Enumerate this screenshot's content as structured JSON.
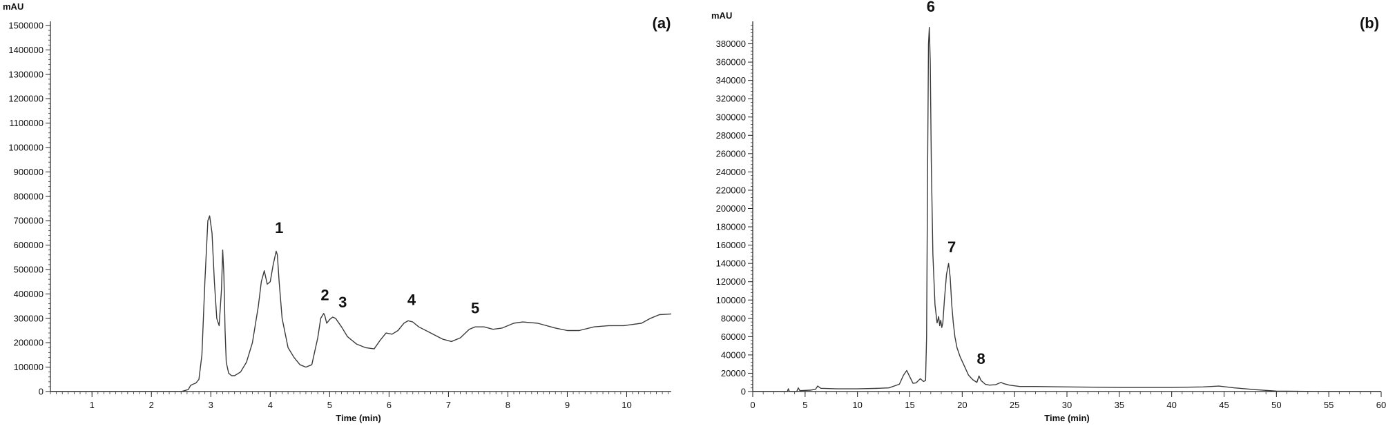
{
  "chart_data": [
    {
      "type": "line",
      "panel_label": "(a)",
      "ylabel": "mAU",
      "xlabel": "Time (min)",
      "xlim": [
        0.3,
        10.75
      ],
      "ylim": [
        0,
        1500000
      ],
      "xticks": [
        1,
        2,
        3,
        4,
        5,
        6,
        7,
        8,
        9,
        10
      ],
      "x_minor_step": 0.1,
      "yticks": [
        0,
        100000,
        200000,
        300000,
        400000,
        500000,
        600000,
        700000,
        800000,
        900000,
        1000000,
        1100000,
        1200000,
        1300000,
        1400000,
        1500000
      ],
      "y_minor_step": 20000,
      "grid": false,
      "series": [
        {
          "x": [
            0.3,
            1.0,
            2.0,
            2.5,
            2.62,
            2.66,
            2.7,
            2.75,
            2.8,
            2.85,
            2.9,
            2.95,
            2.98,
            3.02,
            3.06,
            3.1,
            3.14,
            3.18,
            3.2,
            3.22,
            3.24,
            3.26,
            3.3,
            3.35,
            3.4,
            3.5,
            3.6,
            3.7,
            3.8,
            3.85,
            3.9,
            3.95,
            4.0,
            4.05,
            4.1,
            4.12,
            4.15,
            4.2,
            4.3,
            4.4,
            4.5,
            4.6,
            4.7,
            4.8,
            4.85,
            4.9,
            4.92,
            4.95,
            5.0,
            5.05,
            5.1,
            5.2,
            5.3,
            5.45,
            5.6,
            5.75,
            5.85,
            5.95,
            6.05,
            6.15,
            6.25,
            6.32,
            6.4,
            6.5,
            6.7,
            6.9,
            7.05,
            7.2,
            7.35,
            7.45,
            7.6,
            7.75,
            7.9,
            8.1,
            8.25,
            8.5,
            8.8,
            9.0,
            9.2,
            9.45,
            9.7,
            9.95,
            10.1,
            10.25,
            10.4,
            10.55,
            10.75
          ],
          "values": [
            0,
            0,
            0,
            0,
            8000,
            25000,
            30000,
            35000,
            50000,
            150000,
            450000,
            700000,
            720000,
            650000,
            450000,
            300000,
            270000,
            420000,
            580000,
            480000,
            250000,
            120000,
            75000,
            65000,
            65000,
            80000,
            120000,
            200000,
            350000,
            450000,
            495000,
            440000,
            450000,
            520000,
            575000,
            560000,
            450000,
            300000,
            180000,
            140000,
            110000,
            100000,
            110000,
            220000,
            300000,
            320000,
            310000,
            280000,
            295000,
            305000,
            300000,
            265000,
            225000,
            195000,
            180000,
            175000,
            210000,
            240000,
            235000,
            250000,
            280000,
            290000,
            285000,
            265000,
            240000,
            215000,
            205000,
            220000,
            255000,
            265000,
            265000,
            255000,
            260000,
            280000,
            285000,
            280000,
            260000,
            250000,
            250000,
            265000,
            270000,
            270000,
            275000,
            280000,
            300000,
            315000,
            318000
          ]
        }
      ],
      "annotations": [
        {
          "text": "1",
          "x": 4.15,
          "y": 650000
        },
        {
          "text": "2",
          "x": 4.92,
          "y": 375000
        },
        {
          "text": "3",
          "x": 5.22,
          "y": 345000
        },
        {
          "text": "4",
          "x": 6.38,
          "y": 355000
        },
        {
          "text": "5",
          "x": 7.45,
          "y": 320000
        }
      ]
    },
    {
      "type": "line",
      "panel_label": "(b)",
      "ylabel": "mAU",
      "xlabel": "Time (min)",
      "xlim": [
        0,
        60
      ],
      "ylim": [
        0,
        400000
      ],
      "xticks": [
        0,
        5,
        10,
        15,
        20,
        25,
        30,
        35,
        40,
        45,
        50,
        55,
        60
      ],
      "x_minor_step": 1,
      "yticks": [
        0,
        20000,
        40000,
        60000,
        80000,
        100000,
        120000,
        140000,
        160000,
        180000,
        200000,
        220000,
        240000,
        260000,
        280000,
        300000,
        320000,
        340000,
        360000,
        380000
      ],
      "y_minor_step": 4000,
      "grid": false,
      "series": [
        {
          "x": [
            0,
            3.3,
            3.4,
            3.5,
            4.2,
            4.35,
            4.5,
            5.5,
            6.0,
            6.2,
            6.5,
            8,
            10,
            12,
            13,
            14,
            14.4,
            14.7,
            15.0,
            15.3,
            15.6,
            16.0,
            16.3,
            16.5,
            16.6,
            16.7,
            16.78,
            16.86,
            16.95,
            17.05,
            17.2,
            17.4,
            17.6,
            17.75,
            17.85,
            17.95,
            18.05,
            18.15,
            18.3,
            18.5,
            18.7,
            18.85,
            19.0,
            19.15,
            19.3,
            19.5,
            19.8,
            20.2,
            20.6,
            21.0,
            21.4,
            21.6,
            21.8,
            22.2,
            22.6,
            23.2,
            23.7,
            24.0,
            24.5,
            25.5,
            27,
            30,
            35,
            40,
            43,
            44.5,
            46,
            48,
            50,
            55,
            60
          ],
          "values": [
            0,
            0,
            3000,
            0,
            0,
            4000,
            1000,
            1500,
            2500,
            6000,
            3500,
            3000,
            3000,
            3500,
            4000,
            8000,
            18000,
            23000,
            16000,
            9000,
            9500,
            14000,
            11000,
            12000,
            60000,
            250000,
            380000,
            398000,
            360000,
            250000,
            150000,
            95000,
            75000,
            82000,
            72000,
            78000,
            70000,
            75000,
            100000,
            128000,
            140000,
            125000,
            95000,
            75000,
            60000,
            48000,
            38000,
            28000,
            18000,
            13000,
            10000,
            17000,
            12000,
            8000,
            7000,
            7500,
            10000,
            8500,
            7000,
            5500,
            5500,
            5000,
            4500,
            4500,
            5000,
            6000,
            4000,
            2000,
            500,
            0,
            0
          ]
        }
      ],
      "annotations": [
        {
          "text": "6",
          "x": 17.0,
          "y": 415000
        },
        {
          "text": "7",
          "x": 19.0,
          "y": 152000
        },
        {
          "text": "8",
          "x": 21.8,
          "y": 30000
        }
      ]
    }
  ]
}
